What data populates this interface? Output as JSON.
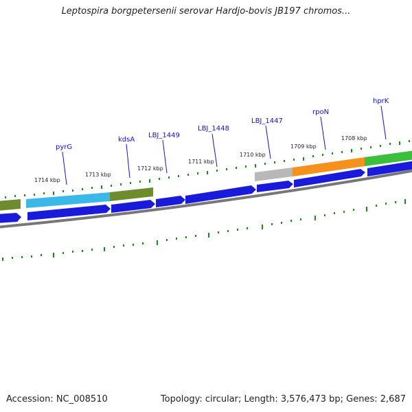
{
  "title": "Leptospira borgpetersenii serovar Hardjo-bovis JB197 chromos...",
  "footer": {
    "accession": "Accession: NC_008510",
    "summary": "Topology: circular; Length: 3,576,473 bp; Genes: 2,687"
  },
  "colors": {
    "forward_cds": "#1a1adb",
    "backbone": "#808080",
    "tick": "#1a8c1a",
    "gene_label": "#1010cc",
    "pyrG": "#3ab8e8",
    "olive": "#6e8c2e",
    "gray_feature": "#b8b8b8",
    "rpoN": "#f5921e",
    "hprK": "#3cbf3c"
  },
  "kbp_labels": [
    "1714 kbp",
    "1713 kbp",
    "1712 kbp",
    "1711 kbp",
    "1710 kbp",
    "1709 kbp",
    "1708 kbp"
  ],
  "gene_labels": [
    "pyrG",
    "kdsA",
    "LBJ_1449",
    "LBJ_1448",
    "LBJ_1447",
    "rpoN",
    "hprK"
  ]
}
